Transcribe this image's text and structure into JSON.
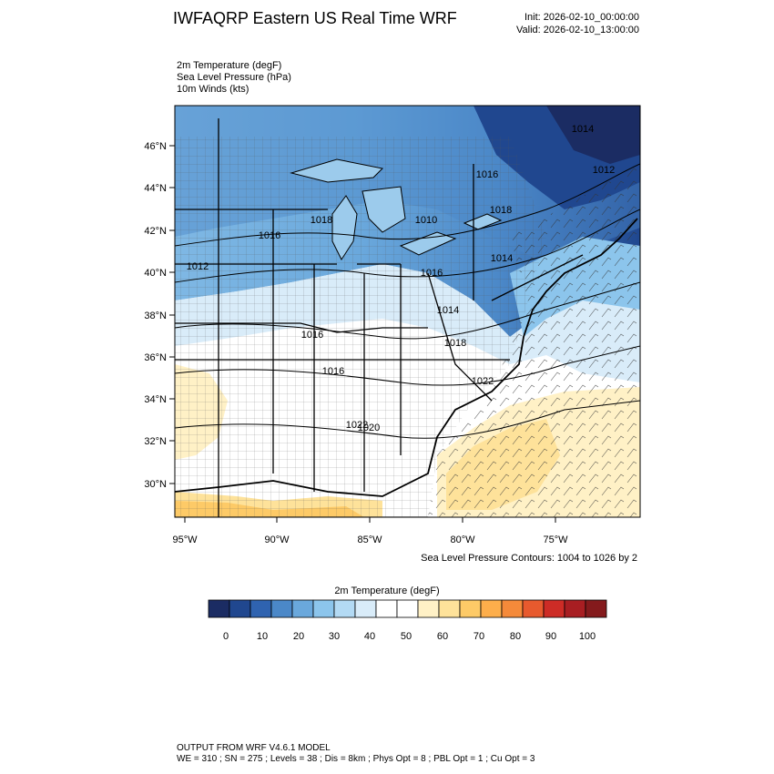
{
  "header": {
    "title": "IWFAQRP Eastern US Real Time WRF",
    "init": "Init: 2026-02-10_00:00:00",
    "valid": "Valid: 2026-02-10_13:00:00"
  },
  "fields": [
    "2m Temperature   (degF)",
    "Sea Level Pressure   (hPa)",
    "10m Winds   (kts)"
  ],
  "map": {
    "lat_labels": [
      "46°N",
      "44°N",
      "42°N",
      "40°N",
      "38°N",
      "36°N",
      "34°N",
      "32°N",
      "30°N"
    ],
    "lon_labels": [
      "95°W",
      "90°W",
      "85°W",
      "80°W",
      "75°W"
    ],
    "pressure_labels": [
      "1012",
      "1018",
      "1016",
      "1014",
      "1010",
      "1016",
      "1018",
      "1012",
      "1014",
      "1016",
      "1014",
      "1016",
      "1018",
      "1016",
      "1022",
      "1020",
      "1022"
    ],
    "contour_note": "Sea Level Pressure Contours: 1004 to 1026 by 2"
  },
  "colorbar": {
    "title": "2m Temperature  (degF)",
    "colors": [
      "#1b2c63",
      "#20478f",
      "#2f63b0",
      "#4b88c8",
      "#6aa8dc",
      "#8cc5ec",
      "#b3daf4",
      "#d9ecf9",
      "#ffffff",
      "#ffffff",
      "#fff1c6",
      "#fee29a",
      "#fdca67",
      "#fdae4b",
      "#f58a3a",
      "#e75a2e",
      "#cd2c26",
      "#a81e22",
      "#841a1c"
    ],
    "ticks": [
      "0",
      "10",
      "20",
      "30",
      "40",
      "50",
      "60",
      "70",
      "80",
      "90",
      "100"
    ]
  },
  "footer": {
    "line1": "OUTPUT FROM WRF V4.6.1 MODEL",
    "line2": "WE = 310 ; SN = 275 ; Levels = 38 ; Dis = 8km ; Phys Opt = 8 ; PBL Opt = 1 ; Cu Opt = 3"
  }
}
